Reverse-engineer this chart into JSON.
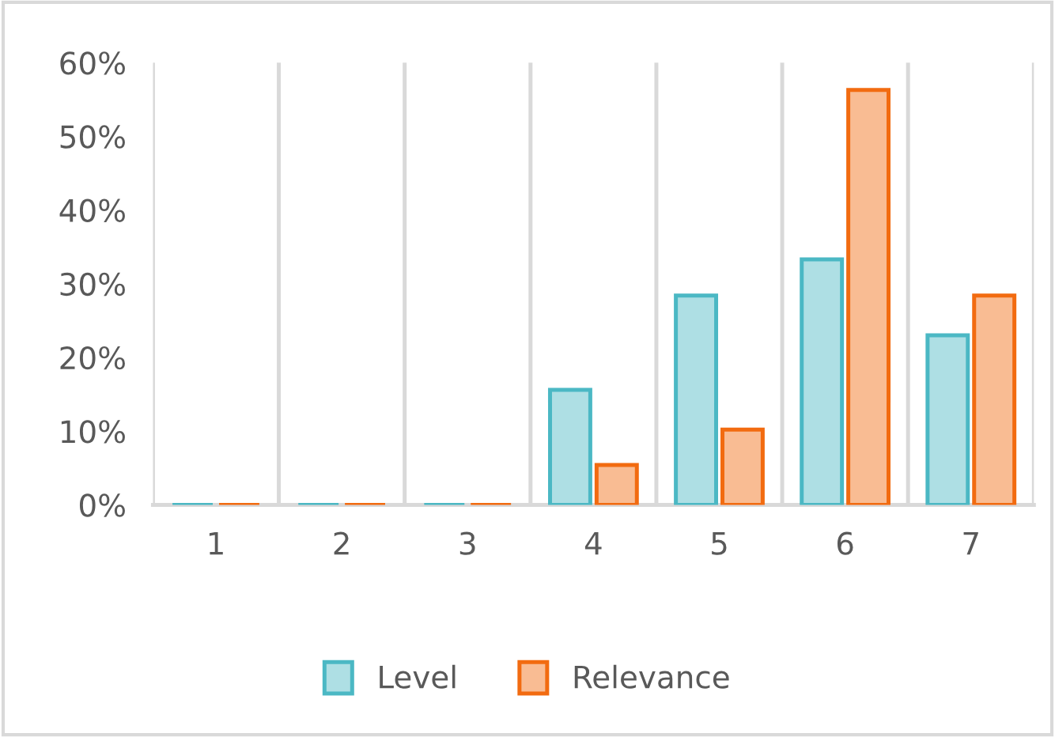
{
  "chart_data": {
    "type": "bar",
    "categories": [
      "1",
      "2",
      "3",
      "4",
      "5",
      "6",
      "7"
    ],
    "series": [
      {
        "name": "Level",
        "color": "#4bb8c4",
        "values": [
          0,
          0,
          0,
          15.6,
          28.4,
          33.3,
          23.0
        ]
      },
      {
        "name": "Relevance",
        "color": "#f26b10",
        "values": [
          0,
          0,
          0,
          5.4,
          10.2,
          56.3,
          28.4
        ]
      }
    ],
    "ylim": [
      0,
      60
    ],
    "yticks": [
      {
        "value": 0,
        "label": "0%"
      },
      {
        "value": 10,
        "label": "10%"
      },
      {
        "value": 20,
        "label": "20%"
      },
      {
        "value": 30,
        "label": "30%"
      },
      {
        "value": 40,
        "label": "40%"
      },
      {
        "value": 50,
        "label": "50%"
      },
      {
        "value": 60,
        "label": "60%"
      }
    ],
    "grid": "x",
    "legend": "bottom"
  }
}
